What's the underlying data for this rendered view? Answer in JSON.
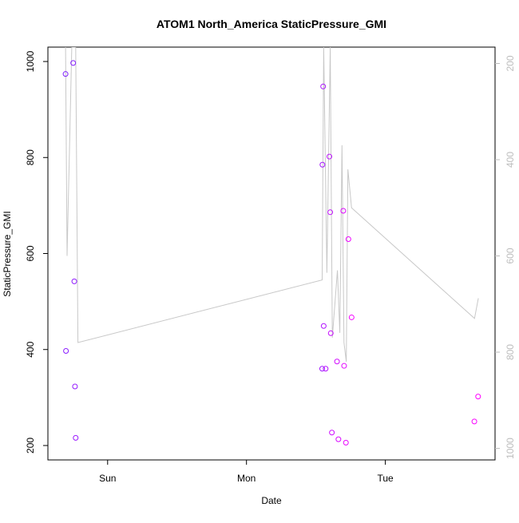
{
  "chart_data": {
    "type": "line",
    "title": "ATOM1 North_America StaticPressure_GMI",
    "xlabel": "Date",
    "ylabel": "StaticPressure_GMI",
    "x_ticks": [
      {
        "label": "Sun",
        "day": 1.0
      },
      {
        "label": "Mon",
        "day": 2.0
      },
      {
        "label": "Tue",
        "day": 3.0
      }
    ],
    "xlim": [
      0.57,
      3.79
    ],
    "ylim_left": [
      170,
      1030
    ],
    "yticks_left": [
      200,
      400,
      600,
      800,
      1000
    ],
    "ylim_right_inverted": [
      1024,
      166
    ],
    "yticks_right": [
      200,
      400,
      600,
      800,
      1000
    ],
    "right_axis_color": "#bdbdbd",
    "series": [
      {
        "kind": "points",
        "axis": "left",
        "color_start": "#7f1fff",
        "color_end": "#ff00ff",
        "points": [
          {
            "day": 0.697,
            "value": 974
          },
          {
            "day": 0.752,
            "value": 997
          },
          {
            "day": 0.7,
            "value": 397
          },
          {
            "day": 0.76,
            "value": 542
          },
          {
            "day": 0.765,
            "value": 323
          },
          {
            "day": 0.77,
            "value": 216
          },
          {
            "day": 2.545,
            "value": 360
          },
          {
            "day": 2.547,
            "value": 785
          },
          {
            "day": 2.552,
            "value": 948
          },
          {
            "day": 2.556,
            "value": 449
          },
          {
            "day": 2.57,
            "value": 360
          },
          {
            "day": 2.597,
            "value": 802
          },
          {
            "day": 2.603,
            "value": 686
          },
          {
            "day": 2.607,
            "value": 434
          },
          {
            "day": 2.615,
            "value": 227
          },
          {
            "day": 2.652,
            "value": 375
          },
          {
            "day": 2.662,
            "value": 213
          },
          {
            "day": 2.697,
            "value": 689
          },
          {
            "day": 2.703,
            "value": 366
          },
          {
            "day": 2.716,
            "value": 206
          },
          {
            "day": 2.734,
            "value": 630
          },
          {
            "day": 2.757,
            "value": 467
          },
          {
            "day": 3.641,
            "value": 250
          },
          {
            "day": 3.668,
            "value": 302
          }
        ]
      },
      {
        "kind": "line",
        "axis": "right",
        "color": "#c8c8c8",
        "points": [
          {
            "day": 0.697,
            "value": 166
          },
          {
            "day": 0.708,
            "value": 600
          },
          {
            "day": 0.742,
            "value": 166
          },
          {
            "day": 0.77,
            "value": 166
          },
          {
            "day": 0.786,
            "value": 780
          },
          {
            "day": 2.545,
            "value": 650
          },
          {
            "day": 2.556,
            "value": 166
          },
          {
            "day": 2.579,
            "value": 635
          },
          {
            "day": 2.603,
            "value": 166
          },
          {
            "day": 2.618,
            "value": 770
          },
          {
            "day": 2.655,
            "value": 630
          },
          {
            "day": 2.672,
            "value": 760
          },
          {
            "day": 2.688,
            "value": 370
          },
          {
            "day": 2.702,
            "value": 780
          },
          {
            "day": 2.719,
            "value": 820
          },
          {
            "day": 2.73,
            "value": 420
          },
          {
            "day": 2.757,
            "value": 500
          },
          {
            "day": 3.642,
            "value": 730
          },
          {
            "day": 3.67,
            "value": 688
          }
        ]
      }
    ]
  }
}
